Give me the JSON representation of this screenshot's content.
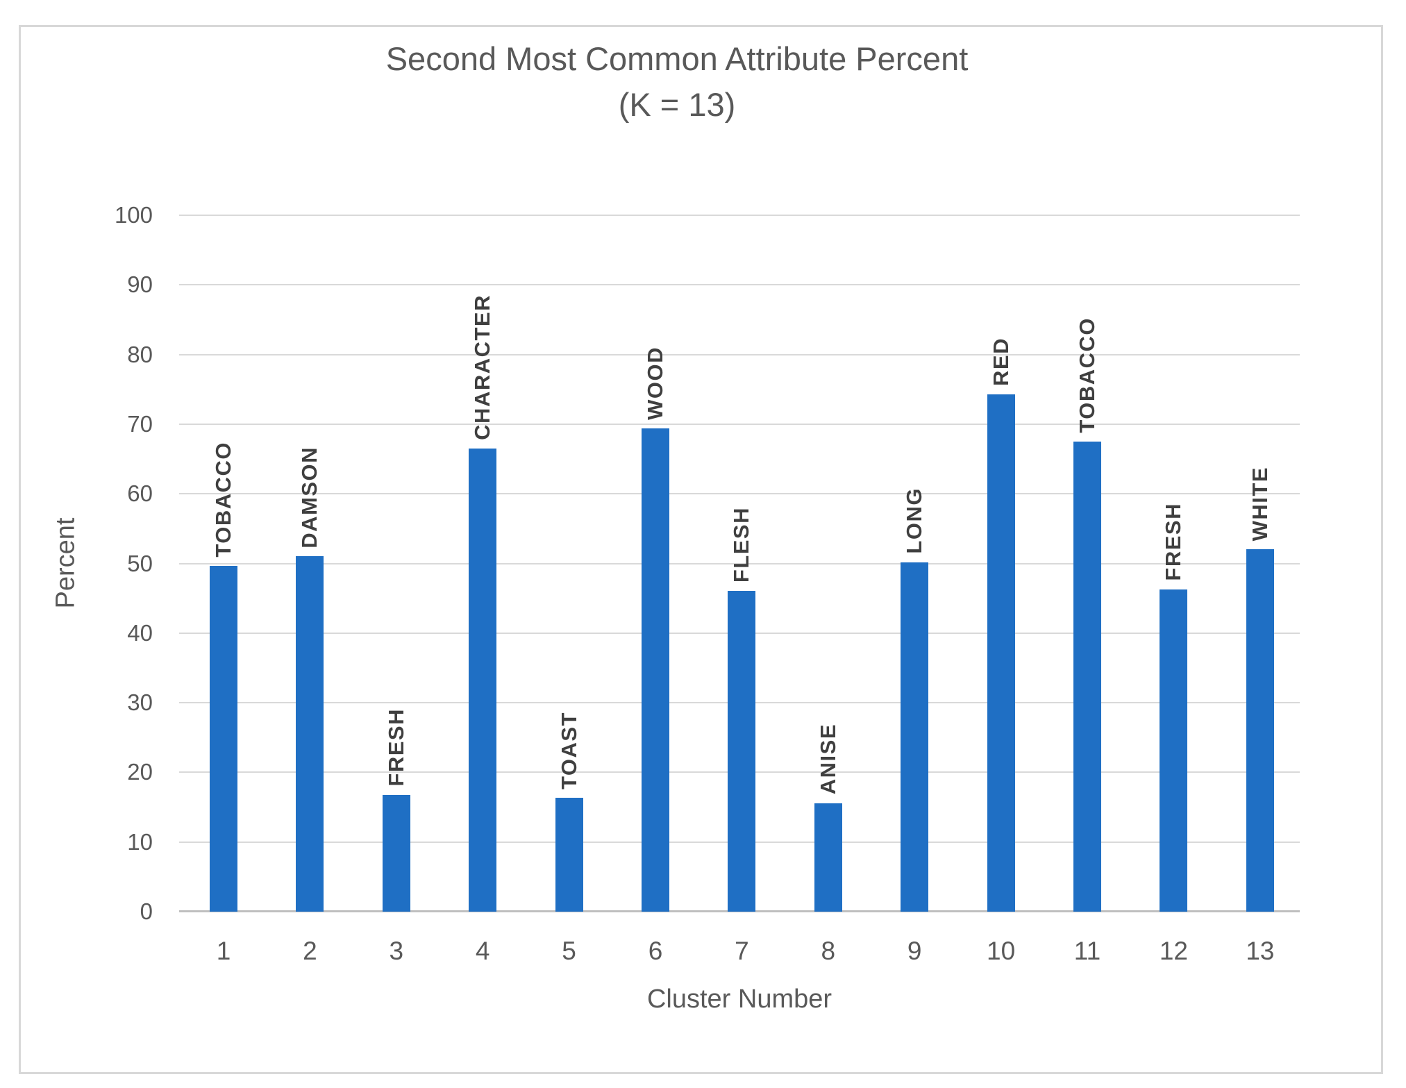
{
  "chart_data": {
    "type": "bar",
    "title": "Second Most Common Attribute Percent",
    "subtitle": "(K = 13)",
    "xlabel": "Cluster Number",
    "ylabel": "Percent",
    "categories": [
      "1",
      "2",
      "3",
      "4",
      "5",
      "6",
      "7",
      "8",
      "9",
      "10",
      "11",
      "12",
      "13"
    ],
    "bar_labels": [
      "TOBACCO",
      "DAMSON",
      "FRESH",
      "CHARACTER",
      "TOAST",
      "WOOD",
      "FLESH",
      "ANISE",
      "LONG",
      "RED",
      "TOBACCO",
      "FRESH",
      "WHITE"
    ],
    "values": [
      49.7,
      51.0,
      16.8,
      66.5,
      16.4,
      69.4,
      46.1,
      15.6,
      50.2,
      74.3,
      67.5,
      46.3,
      52.0
    ],
    "ylim": [
      0,
      100
    ],
    "ytick_step": 10,
    "ytick_labels": [
      "0",
      "10",
      "20",
      "30",
      "40",
      "50",
      "60",
      "70",
      "80",
      "90",
      "100"
    ],
    "grid": true,
    "legend": null
  },
  "colors": {
    "bar": "#1f6fc4",
    "gridline": "#d9d9d9",
    "axis_line": "#bfbfbf",
    "text": "#595959",
    "bar_label_text": "#3f3f3f",
    "border": "#d8d8d8",
    "background": "#ffffff"
  }
}
